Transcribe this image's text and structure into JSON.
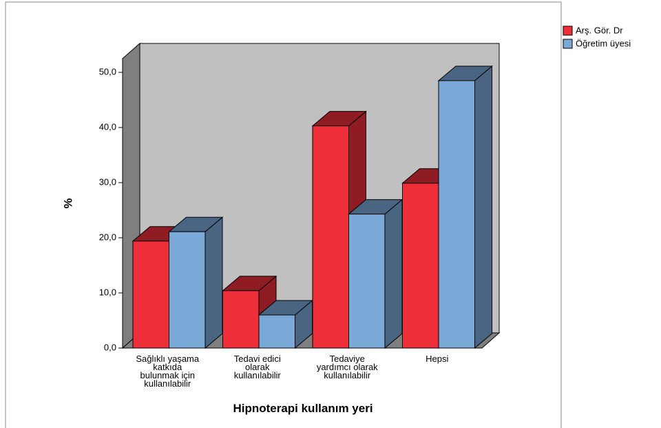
{
  "chart_data": {
    "type": "bar3d",
    "x_label": "Hipnoterapi kullanım yeri",
    "y_label": "%",
    "categories": [
      "Sağlıklı yaşama\nkatkıda\nbulunmak için\nkullanılabilir",
      "Tedavi edici\nolarak\nkullanılabilir",
      "Tedaviye\nyardımcı olarak\nkullanılabilir",
      "Hepsi"
    ],
    "series": [
      {
        "name": "Arş. Gör. Dr",
        "color": "#ee2e38",
        "values": [
          19.4,
          10.4,
          40.3,
          29.9
        ]
      },
      {
        "name": "Öğretim üyesi",
        "color": "#7aa9d8",
        "values": [
          21.1,
          6.0,
          24.3,
          48.5
        ]
      }
    ],
    "ylim": [
      0,
      52.5
    ],
    "yticks": [
      {
        "value": 0,
        "label": "0,0"
      },
      {
        "value": 10,
        "label": "10,0"
      },
      {
        "value": 20,
        "label": "20,0"
      },
      {
        "value": 30,
        "label": "30,0"
      },
      {
        "value": 40,
        "label": "40,0"
      },
      {
        "value": 50,
        "label": "50,0"
      }
    ],
    "legend": "top-right"
  }
}
